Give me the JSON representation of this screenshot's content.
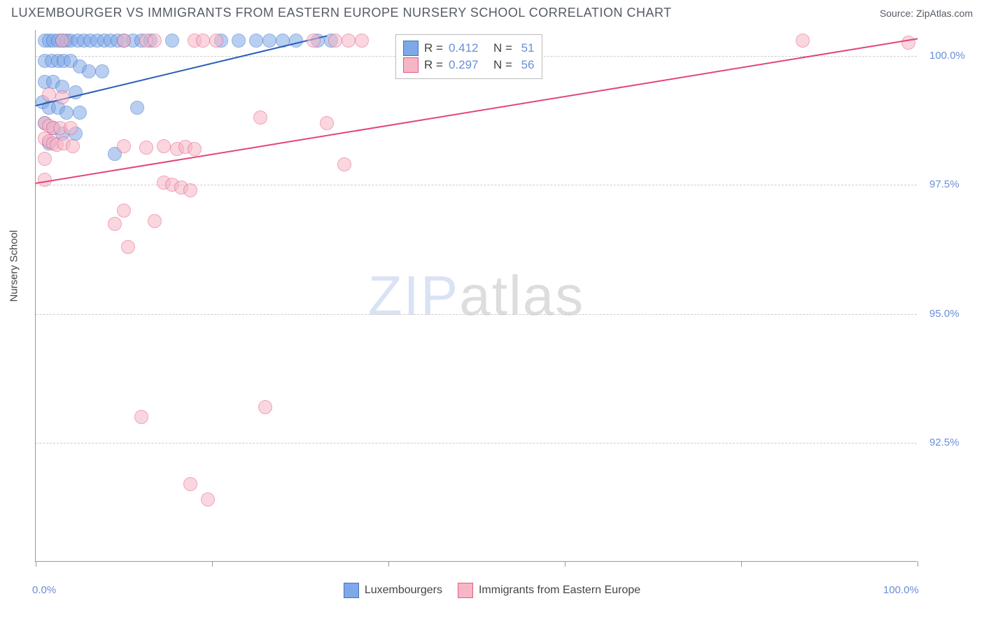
{
  "title": "LUXEMBOURGER VS IMMIGRANTS FROM EASTERN EUROPE NURSERY SCHOOL CORRELATION CHART",
  "source_label": "Source: ",
  "source_name": "ZipAtlas.com",
  "watermark": {
    "part1": "ZIP",
    "part2": "atlas"
  },
  "chart": {
    "type": "scatter",
    "ylabel": "Nursery School",
    "xlim": [
      0,
      100
    ],
    "ylim": [
      90.2,
      100.5
    ],
    "xtick_positions": [
      0,
      20,
      40,
      60,
      80,
      100
    ],
    "xlabels_shown": {
      "0": "0.0%",
      "100": "100.0%"
    },
    "ytick_positions": [
      92.5,
      95.0,
      97.5,
      100.0
    ],
    "ylabels": [
      "92.5%",
      "95.0%",
      "97.5%",
      "100.0%"
    ],
    "background_color": "#ffffff",
    "grid_color": "#cccccc",
    "axis_color": "#999999",
    "label_color": "#6a8fd8",
    "marker_radius": 10,
    "marker_opacity": 0.55,
    "series": [
      {
        "id": "luxembourgers",
        "label": "Luxembourgers",
        "R": "0.412",
        "N": "51",
        "fill_color": "#7fa8e8",
        "stroke_color": "#3f73c4",
        "trend_color": "#2a5db8",
        "trend": {
          "x1": 0,
          "y1": 99.05,
          "x2": 33,
          "y2": 100.4
        },
        "points": [
          [
            1.0,
            100.3
          ],
          [
            1.5,
            100.3
          ],
          [
            2.0,
            100.3
          ],
          [
            2.5,
            100.3
          ],
          [
            3.0,
            100.3
          ],
          [
            3.5,
            100.3
          ],
          [
            4.0,
            100.3
          ],
          [
            4.8,
            100.3
          ],
          [
            5.5,
            100.3
          ],
          [
            6.2,
            100.3
          ],
          [
            7.0,
            100.3
          ],
          [
            7.8,
            100.3
          ],
          [
            8.5,
            100.3
          ],
          [
            9.3,
            100.3
          ],
          [
            10.0,
            100.3
          ],
          [
            11.0,
            100.3
          ],
          [
            12.0,
            100.3
          ],
          [
            13.0,
            100.3
          ],
          [
            15.5,
            100.3
          ],
          [
            21.0,
            100.3
          ],
          [
            23.0,
            100.3
          ],
          [
            25.0,
            100.3
          ],
          [
            26.5,
            100.3
          ],
          [
            28.0,
            100.3
          ],
          [
            29.5,
            100.3
          ],
          [
            32.0,
            100.3
          ],
          [
            33.5,
            100.3
          ],
          [
            1.0,
            99.9
          ],
          [
            1.8,
            99.9
          ],
          [
            2.5,
            99.9
          ],
          [
            3.2,
            99.9
          ],
          [
            4.0,
            99.9
          ],
          [
            5.0,
            99.8
          ],
          [
            6.0,
            99.7
          ],
          [
            7.5,
            99.7
          ],
          [
            1.0,
            99.5
          ],
          [
            2.0,
            99.5
          ],
          [
            3.0,
            99.4
          ],
          [
            4.5,
            99.3
          ],
          [
            0.8,
            99.1
          ],
          [
            1.5,
            99.0
          ],
          [
            2.5,
            99.0
          ],
          [
            3.5,
            98.9
          ],
          [
            5.0,
            98.9
          ],
          [
            11.5,
            99.0
          ],
          [
            1.0,
            98.7
          ],
          [
            2.0,
            98.6
          ],
          [
            3.0,
            98.5
          ],
          [
            4.5,
            98.5
          ],
          [
            1.5,
            98.3
          ],
          [
            9.0,
            98.1
          ]
        ]
      },
      {
        "id": "immigrants",
        "label": "Immigrants from Eastern Europe",
        "R": "0.297",
        "N": "56",
        "fill_color": "#f6b6c6",
        "stroke_color": "#e65a85",
        "trend_color": "#e3447a",
        "trend": {
          "x1": 0,
          "y1": 97.55,
          "x2": 100,
          "y2": 100.35
        },
        "points": [
          [
            3.0,
            100.3
          ],
          [
            10.0,
            100.3
          ],
          [
            12.5,
            100.3
          ],
          [
            13.5,
            100.3
          ],
          [
            18.0,
            100.3
          ],
          [
            19.0,
            100.3
          ],
          [
            20.5,
            100.3
          ],
          [
            31.5,
            100.3
          ],
          [
            34.0,
            100.3
          ],
          [
            35.5,
            100.3
          ],
          [
            37.0,
            100.3
          ],
          [
            87.0,
            100.3
          ],
          [
            99.0,
            100.25
          ],
          [
            1.5,
            99.25
          ],
          [
            3.0,
            99.2
          ],
          [
            1.0,
            98.7
          ],
          [
            1.5,
            98.65
          ],
          [
            2.0,
            98.6
          ],
          [
            2.8,
            98.6
          ],
          [
            4.0,
            98.6
          ],
          [
            25.5,
            98.8
          ],
          [
            33.0,
            98.7
          ],
          [
            1.0,
            98.4
          ],
          [
            1.5,
            98.35
          ],
          [
            2.0,
            98.3
          ],
          [
            2.4,
            98.28
          ],
          [
            3.2,
            98.3
          ],
          [
            4.2,
            98.25
          ],
          [
            10.0,
            98.25
          ],
          [
            12.5,
            98.22
          ],
          [
            14.5,
            98.25
          ],
          [
            16.0,
            98.2
          ],
          [
            17.0,
            98.23
          ],
          [
            18.0,
            98.2
          ],
          [
            1.0,
            98.0
          ],
          [
            35.0,
            97.9
          ],
          [
            1.0,
            97.6
          ],
          [
            14.5,
            97.55
          ],
          [
            15.5,
            97.5
          ],
          [
            16.5,
            97.45
          ],
          [
            17.5,
            97.4
          ],
          [
            9.0,
            96.75
          ],
          [
            10.0,
            97.0
          ],
          [
            13.5,
            96.8
          ],
          [
            10.5,
            96.3
          ],
          [
            12.0,
            93.0
          ],
          [
            26.0,
            93.2
          ],
          [
            17.5,
            91.7
          ],
          [
            19.5,
            91.4
          ]
        ]
      }
    ],
    "legend_bottom": [
      {
        "label": "Luxembourgers",
        "fill": "#7fa8e8",
        "stroke": "#3f73c4"
      },
      {
        "label": "Immigrants from Eastern Europe",
        "fill": "#f6b6c6",
        "stroke": "#e65a85"
      }
    ],
    "legend_top_labels": {
      "R": "R =",
      "N": "N ="
    }
  }
}
